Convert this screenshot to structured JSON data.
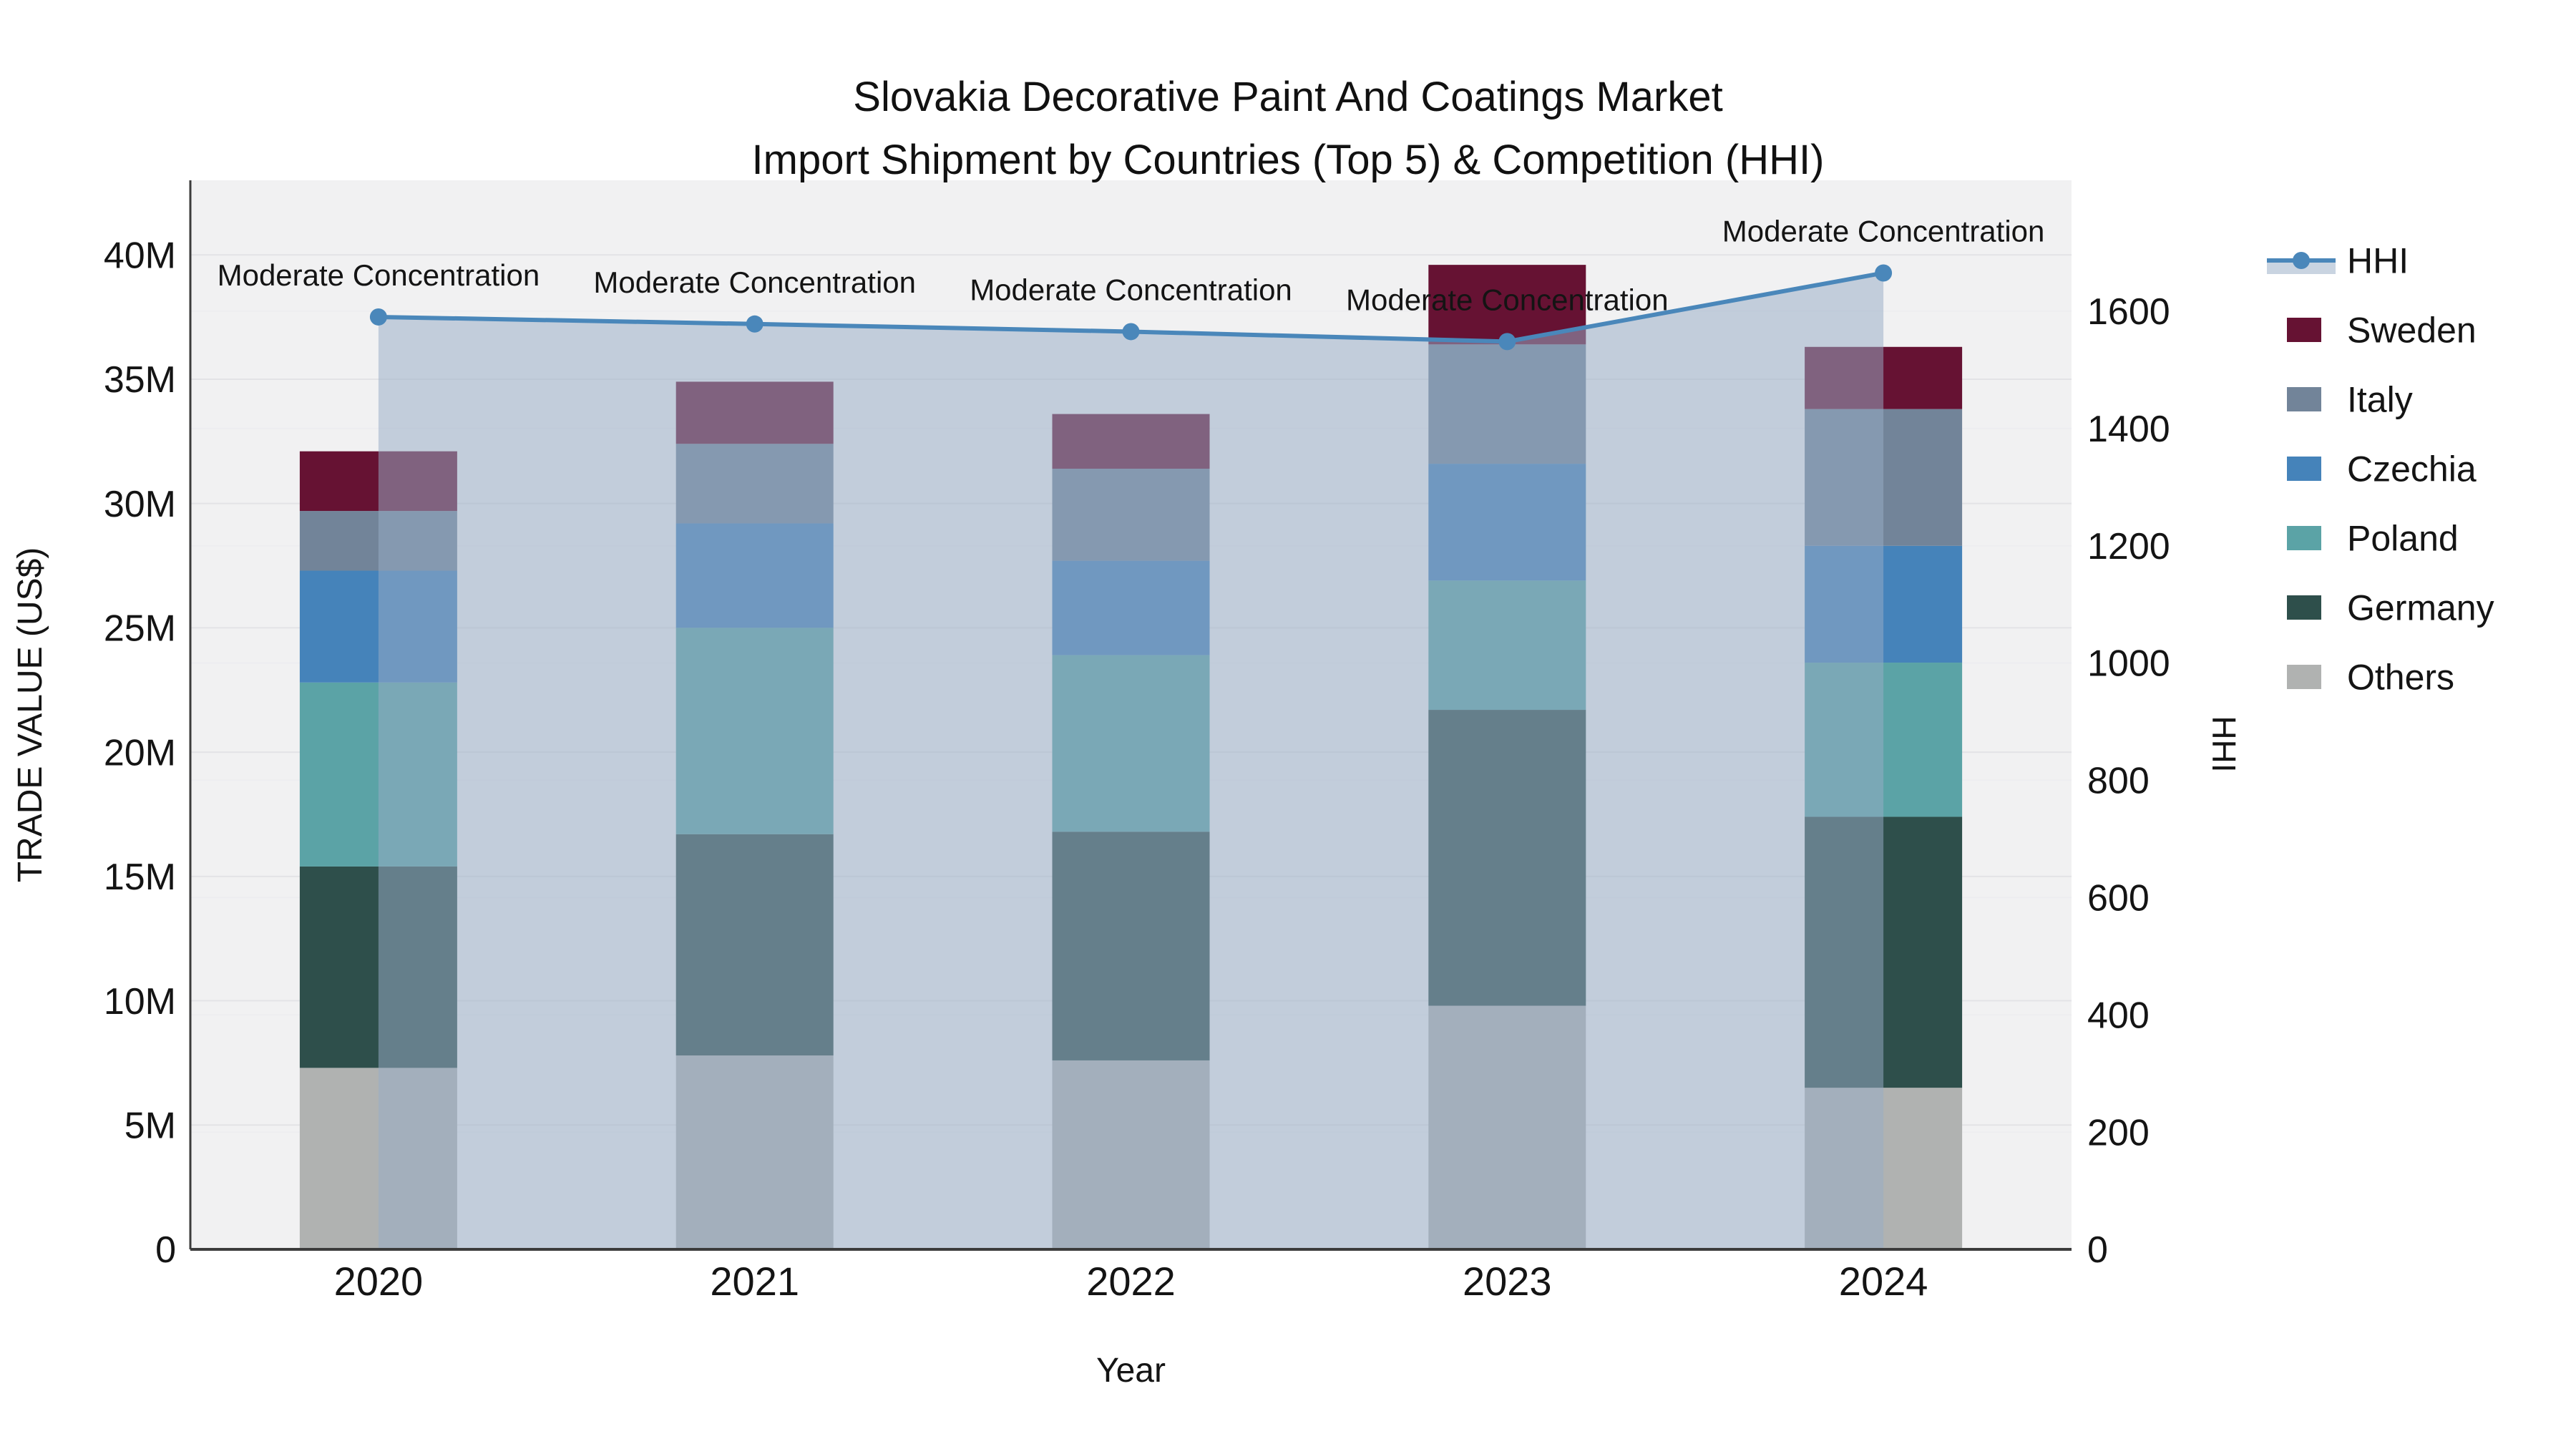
{
  "title": {
    "line1": "Slovakia Decorative Paint And Coatings Market",
    "line2": "Import Shipment by Countries (Top 5) & Competition (HHI)"
  },
  "chart_data": {
    "type": "bar",
    "subtype": "stacked-bars-with-line-overlay",
    "categories": [
      "2020",
      "2021",
      "2022",
      "2023",
      "2024"
    ],
    "xlabel": "Year",
    "ylabel_left": "TRADE VALUE (US$)",
    "ylabel_right": "HHI",
    "value_unit": "million US$",
    "stack_order_bottom_to_top": [
      "Others",
      "Germany",
      "Poland",
      "Czechia",
      "Italy",
      "Sweden"
    ],
    "series": [
      {
        "name": "Sweden",
        "color": "#661233",
        "values": [
          2.4,
          2.5,
          2.2,
          3.2,
          2.5
        ]
      },
      {
        "name": "Italy",
        "color": "#728499",
        "values": [
          2.4,
          3.2,
          3.7,
          4.8,
          5.5
        ]
      },
      {
        "name": "Czechia",
        "color": "#4583ba",
        "values": [
          4.5,
          4.2,
          3.8,
          4.7,
          4.7
        ]
      },
      {
        "name": "Poland",
        "color": "#5ba3a6",
        "values": [
          7.4,
          8.3,
          7.1,
          5.2,
          6.2
        ]
      },
      {
        "name": "Germany",
        "color": "#2e4f4b",
        "values": [
          8.1,
          8.9,
          9.2,
          11.9,
          10.9
        ]
      },
      {
        "name": "Others",
        "color": "#b0b2b1",
        "values": [
          7.3,
          7.8,
          7.6,
          9.8,
          6.5
        ]
      }
    ],
    "line_series": {
      "name": "HHI",
      "axis": "right",
      "color": "#4a87ba",
      "fill_color": "rgba(152,172,198,0.52)",
      "values": [
        1590,
        1578,
        1565,
        1548,
        1665
      ],
      "point_annotation": "Moderate Concentration"
    },
    "left_axis": {
      "tick_labels": [
        "0",
        "5M",
        "10M",
        "15M",
        "20M",
        "25M",
        "30M",
        "35M",
        "40M"
      ],
      "tick_values": [
        0,
        5,
        10,
        15,
        20,
        25,
        30,
        35,
        40
      ],
      "range": [
        0,
        43
      ]
    },
    "right_axis": {
      "tick_labels": [
        "0",
        "200",
        "400",
        "600",
        "800",
        "1000",
        "1200",
        "1400",
        "1600"
      ],
      "tick_values": [
        0,
        200,
        400,
        600,
        800,
        1000,
        1200,
        1400,
        1600
      ],
      "range": [
        0,
        1823
      ]
    },
    "legend": {
      "items": [
        "HHI",
        "Sweden",
        "Italy",
        "Czechia",
        "Poland",
        "Germany",
        "Others"
      ],
      "position": "right"
    },
    "grid": true
  },
  "colors": {
    "plot_background": "#f1f1f2",
    "gridline_left": "#e3e3e6",
    "gridline_right": "#ededf0",
    "axis_line": "#3c3c3c",
    "text": "#141414",
    "annotation_text": "#1a1a1a"
  }
}
